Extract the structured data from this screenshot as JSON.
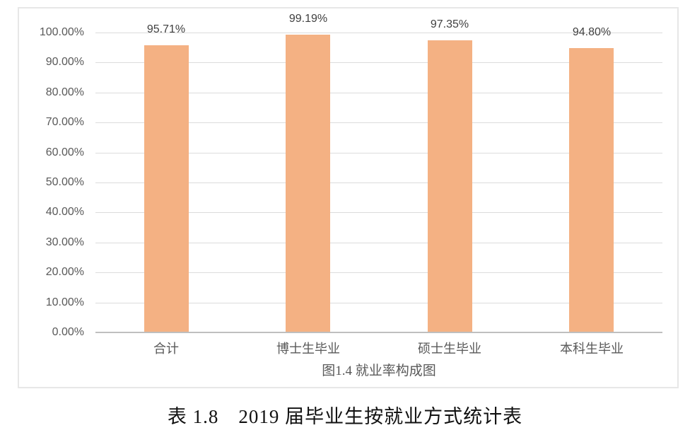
{
  "document": {
    "table_title": "表 1.8　2019 届毕业生按就业方式统计表"
  },
  "chart_data": {
    "type": "bar",
    "title": "图1.4 就业率构成图",
    "categories": [
      "合计",
      "博士生毕业",
      "硕士生毕业",
      "本科生毕业"
    ],
    "values": [
      95.71,
      99.19,
      97.35,
      94.8
    ],
    "data_labels": [
      "95.71%",
      "99.19%",
      "97.35%",
      "94.80%"
    ],
    "xlabel": "",
    "ylabel": "",
    "ylim": [
      0,
      100
    ],
    "ytick_step": 10,
    "ytick_labels": [
      "0.00%",
      "10.00%",
      "20.00%",
      "30.00%",
      "40.00%",
      "50.00%",
      "60.00%",
      "70.00%",
      "80.00%",
      "90.00%",
      "100.00%"
    ],
    "grid": true,
    "legend": false,
    "colors": {
      "bar": "#F4B183",
      "gridline": "#DCDCDC",
      "axis_line": "#BFBFBF",
      "tick_text": "#595959",
      "data_label_text": "#404040",
      "category_text": "#595959",
      "caption_text": "#595959",
      "title_text": "#111111",
      "frame_border": "#E7E7E7"
    }
  }
}
